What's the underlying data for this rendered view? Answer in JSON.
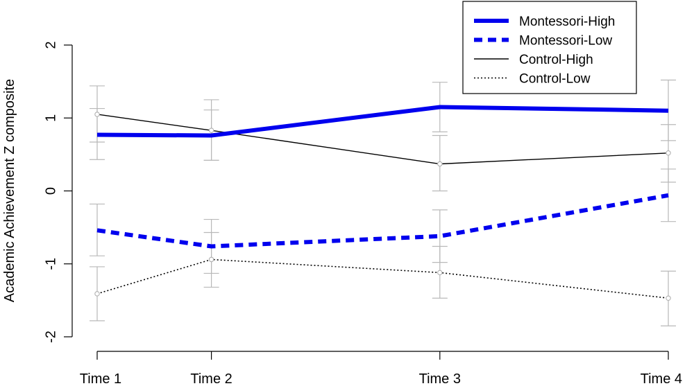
{
  "chart_data": {
    "type": "line",
    "title": "",
    "xlabel": "",
    "ylabel": "Academic Achievement Z composite",
    "x": [
      1,
      2,
      4,
      6
    ],
    "categories": [
      "Time 1",
      "Time 2",
      "Time 3",
      "Time 4"
    ],
    "ylim": [
      -2,
      2
    ],
    "yticks": [
      -2,
      -1,
      0,
      1,
      2
    ],
    "grid": false,
    "legend_position": "top-right",
    "series": [
      {
        "name": "Montessori-High",
        "values": [
          0.77,
          0.76,
          1.15,
          1.1
        ],
        "error_lower": [
          0.43,
          0.42,
          0.81,
          0.69
        ],
        "error_upper": [
          1.13,
          1.11,
          1.49,
          1.52
        ],
        "color": "#0000ee",
        "line_style": "solid-thick",
        "markers": false
      },
      {
        "name": "Montessori-Low",
        "values": [
          -0.54,
          -0.76,
          -0.62,
          -0.06
        ],
        "error_lower": [
          -0.89,
          -1.13,
          -0.98,
          -0.42
        ],
        "error_upper": [
          -0.18,
          -0.39,
          -0.26,
          0.3
        ],
        "color": "#0000ee",
        "line_style": "dashed-thick",
        "markers": false
      },
      {
        "name": "Control-High",
        "values": [
          1.05,
          0.83,
          0.37,
          0.52
        ],
        "error_lower": [
          0.67,
          0.42,
          0.0,
          0.12
        ],
        "error_upper": [
          1.44,
          1.25,
          0.76,
          0.91
        ],
        "color": "#000000",
        "line_style": "solid-thin",
        "markers": true
      },
      {
        "name": "Control-Low",
        "values": [
          -1.41,
          -0.94,
          -1.12,
          -1.47
        ],
        "error_lower": [
          -1.78,
          -1.32,
          -1.47,
          -1.85
        ],
        "error_upper": [
          -1.04,
          -0.57,
          -0.76,
          -1.1
        ],
        "color": "#000000",
        "line_style": "dotted-thin",
        "markers": true
      }
    ]
  }
}
